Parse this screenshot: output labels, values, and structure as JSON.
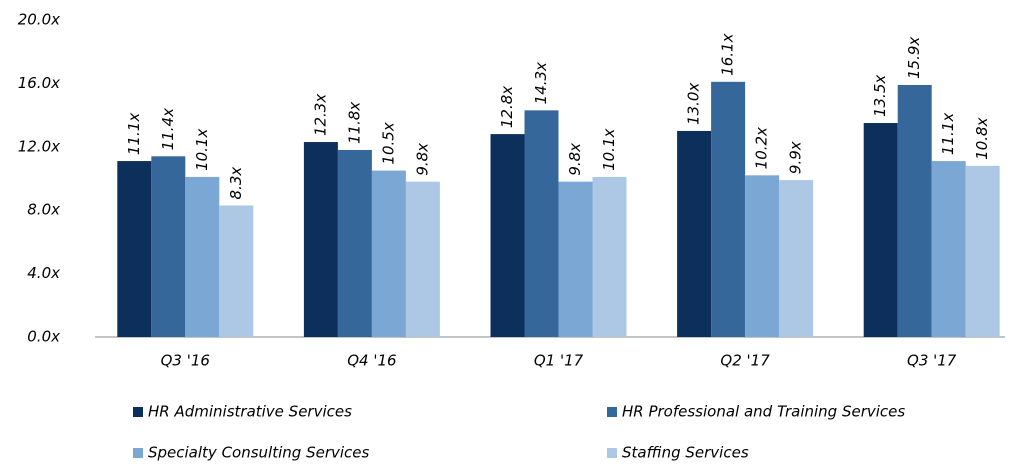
{
  "chart_data": {
    "type": "bar",
    "categories": [
      "Q3 '16",
      "Q4 '16",
      "Q1 '17",
      "Q2 '17",
      "Q3 '17"
    ],
    "series": [
      {
        "name": "HR Administrative Services",
        "color": "#0c2f5c",
        "values": [
          11.1,
          12.3,
          12.8,
          13.0,
          13.5
        ],
        "value_labels": [
          "11.1x",
          "12.3x",
          "12.8x",
          "13.0x",
          "13.5x"
        ]
      },
      {
        "name": "HR Professional and Training Services",
        "color": "#36679b",
        "values": [
          11.4,
          11.8,
          14.3,
          16.1,
          15.9
        ],
        "value_labels": [
          "11.4x",
          "11.8x",
          "14.3x",
          "16.1x",
          "15.9x"
        ]
      },
      {
        "name": "Specialty Consulting Services",
        "color": "#7ba7d4",
        "values": [
          10.1,
          10.5,
          9.8,
          10.2,
          11.1
        ],
        "value_labels": [
          "10.1x",
          "10.5x",
          "9.8x",
          "10.2x",
          "11.1x"
        ]
      },
      {
        "name": "Staffing Services",
        "color": "#adc8e4",
        "values": [
          8.3,
          9.8,
          10.1,
          9.9,
          10.8
        ],
        "value_labels": [
          "8.3x",
          "9.8x",
          "10.1x",
          "9.9x",
          "10.8x"
        ]
      }
    ],
    "ylim": [
      0,
      20
    ],
    "yticks": [
      {
        "value": 0,
        "label": "0.0x"
      },
      {
        "value": 4,
        "label": "4.0x"
      },
      {
        "value": 8,
        "label": "8.0x"
      },
      {
        "value": 12,
        "label": "12.0x"
      },
      {
        "value": 16,
        "label": "16.0x"
      },
      {
        "value": 20,
        "label": "20.0x"
      }
    ],
    "grid": false,
    "legend": "bottom"
  }
}
